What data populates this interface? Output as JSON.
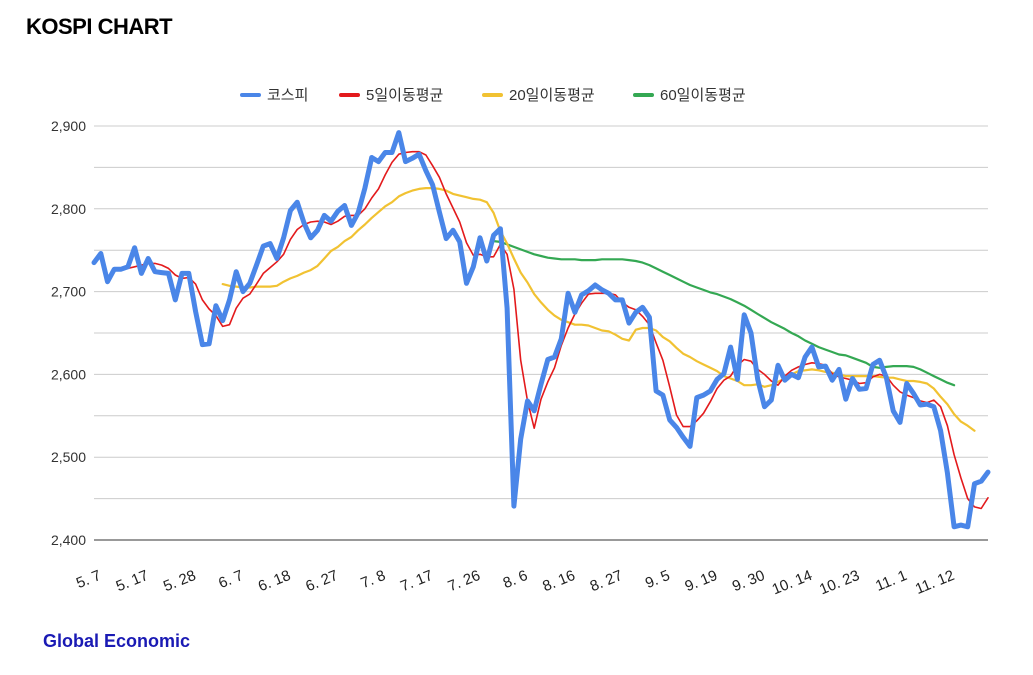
{
  "header": {
    "title": "KOSPI CHART"
  },
  "footer": {
    "source": "Global Economic"
  },
  "chart_data": {
    "type": "line",
    "title": "KOSPI CHART",
    "xlabel": "",
    "ylabel": "",
    "ylim": [
      2400,
      2900
    ],
    "yticks": [
      "2,400",
      "2,500",
      "2,600",
      "2,700",
      "2,800",
      "2,900"
    ],
    "ytick_values": [
      2400,
      2500,
      2600,
      2700,
      2800,
      2900
    ],
    "xtick_labels": [
      "5. 7",
      "5. 17",
      "5. 28",
      "6. 7",
      "6. 18",
      "6. 27",
      "7. 8",
      "7. 17",
      "7. 26",
      "8. 6",
      "8. 16",
      "8. 27",
      "9. 5",
      "9. 19",
      "9. 30",
      "10. 14",
      "10. 23",
      "11. 1",
      "11. 12"
    ],
    "xtick_index": [
      0,
      7,
      14,
      21,
      28,
      35,
      42,
      49,
      56,
      63,
      70,
      77,
      84,
      91,
      98,
      105,
      112,
      119,
      126
    ],
    "grid": true,
    "legend": "top",
    "series": [
      {
        "name": "코스피",
        "color": "#4a86e8",
        "values": [
          2735,
          2746,
          2712,
          2727,
          2727,
          2730,
          2753,
          2722,
          2740,
          2724,
          2723,
          2722,
          2690,
          2722,
          2722,
          2676,
          2636,
          2637,
          2683,
          2665,
          2690,
          2724,
          2700,
          2710,
          2732,
          2755,
          2758,
          2740,
          2765,
          2798,
          2808,
          2783,
          2765,
          2774,
          2792,
          2785,
          2797,
          2804,
          2780,
          2795,
          2825,
          2862,
          2857,
          2868,
          2868,
          2892,
          2857,
          2861,
          2866,
          2846,
          2829,
          2796,
          2764,
          2774,
          2760,
          2710,
          2730,
          2765,
          2737,
          2768,
          2776,
          2680,
          2441,
          2522,
          2568,
          2556,
          2588,
          2618,
          2621,
          2643,
          2698,
          2675,
          2696,
          2701,
          2708,
          2702,
          2698,
          2690,
          2690,
          2662,
          2675,
          2681,
          2669,
          2580,
          2575,
          2545,
          2536,
          2524,
          2513,
          2572,
          2575,
          2580,
          2594,
          2601,
          2633,
          2594,
          2672,
          2650,
          2594,
          2561,
          2569,
          2611,
          2593,
          2600,
          2596,
          2621,
          2633,
          2609,
          2610,
          2593,
          2606,
          2570,
          2595,
          2582,
          2583,
          2612,
          2617,
          2596,
          2556,
          2542,
          2589,
          2577,
          2563,
          2564,
          2561,
          2532,
          2481,
          2416,
          2418,
          2416,
          2468,
          2471,
          2482
        ]
      },
      {
        "name": "5일이동평균",
        "color": "#e31a1c",
        "values": [
          null,
          null,
          null,
          null,
          2727,
          2728,
          2730,
          2732,
          2734,
          2734,
          2732,
          2728,
          2720,
          2716,
          2717,
          2709,
          2690,
          2679,
          2671,
          2658,
          2660,
          2680,
          2692,
          2697,
          2709,
          2722,
          2729,
          2736,
          2745,
          2763,
          2775,
          2781,
          2784,
          2785,
          2784,
          2781,
          2785,
          2791,
          2792,
          2792,
          2800,
          2813,
          2824,
          2841,
          2856,
          2866,
          2868,
          2869,
          2869,
          2865,
          2852,
          2838,
          2818,
          2801,
          2784,
          2759,
          2744,
          2745,
          2742,
          2742,
          2757,
          2745,
          2703,
          2617,
          2568,
          2535,
          2570,
          2591,
          2608,
          2635,
          2656,
          2673,
          2686,
          2697,
          2698,
          2698,
          2698,
          2696,
          2687,
          2681,
          2678,
          2670,
          2660,
          2638,
          2617,
          2585,
          2551,
          2537,
          2537,
          2544,
          2553,
          2567,
          2583,
          2593,
          2598,
          2611,
          2618,
          2616,
          2606,
          2600,
          2592,
          2587,
          2598,
          2605,
          2609,
          2612,
          2614,
          2613,
          2611,
          2601,
          2597,
          2595,
          2593,
          2589,
          2590,
          2597,
          2600,
          2598,
          2587,
          2579,
          2575,
          2572,
          2568,
          2566,
          2569,
          2561,
          2538,
          2503,
          2475,
          2450,
          2440,
          2438,
          2451
        ]
      },
      {
        "name": "20일이동평균",
        "color": "#f1c232",
        "values": [
          null,
          null,
          null,
          null,
          null,
          null,
          null,
          null,
          null,
          null,
          null,
          null,
          null,
          null,
          null,
          null,
          null,
          null,
          null,
          2709,
          2707,
          2706,
          2705,
          2705,
          2706,
          2706,
          2706,
          2707,
          2712,
          2716,
          2719,
          2723,
          2726,
          2731,
          2740,
          2749,
          2754,
          2761,
          2766,
          2774,
          2781,
          2789,
          2796,
          2803,
          2808,
          2815,
          2819,
          2822,
          2824,
          2825,
          2825,
          2824,
          2822,
          2818,
          2816,
          2814,
          2812,
          2811,
          2808,
          2795,
          2773,
          2758,
          2740,
          2723,
          2711,
          2697,
          2687,
          2678,
          2671,
          2666,
          2663,
          2660,
          2660,
          2659,
          2656,
          2653,
          2652,
          2648,
          2643,
          2641,
          2654,
          2656,
          2656,
          2653,
          2645,
          2640,
          2632,
          2625,
          2621,
          2616,
          2612,
          2608,
          2604,
          2598,
          2595,
          2592,
          2587,
          2587,
          2588,
          2585,
          2587,
          2591,
          2595,
          2600,
          2604,
          2605,
          2606,
          2605,
          2603,
          2602,
          2600,
          2598,
          2598,
          2598,
          2598,
          2598,
          2597,
          2596,
          2596,
          2594,
          2592,
          2592,
          2591,
          2589,
          2583,
          2573,
          2564,
          2552,
          2543,
          2538,
          2532
        ]
      },
      {
        "name": "60일이동평균",
        "color": "#34a853",
        "values": [
          null,
          null,
          null,
          null,
          null,
          null,
          null,
          null,
          null,
          null,
          null,
          null,
          null,
          null,
          null,
          null,
          null,
          null,
          null,
          null,
          null,
          null,
          null,
          null,
          null,
          null,
          null,
          null,
          null,
          null,
          null,
          null,
          null,
          null,
          null,
          null,
          null,
          null,
          null,
          null,
          null,
          null,
          null,
          null,
          null,
          null,
          null,
          null,
          null,
          null,
          null,
          null,
          null,
          null,
          null,
          null,
          null,
          null,
          null,
          2761,
          2760,
          2757,
          2754,
          2751,
          2748,
          2745,
          2743,
          2741,
          2740,
          2739,
          2739,
          2739,
          2738,
          2738,
          2738,
          2739,
          2739,
          2739,
          2739,
          2738,
          2737,
          2735,
          2732,
          2728,
          2724,
          2720,
          2716,
          2712,
          2708,
          2705,
          2702,
          2699,
          2697,
          2694,
          2691,
          2687,
          2683,
          2678,
          2673,
          2668,
          2663,
          2659,
          2655,
          2650,
          2646,
          2641,
          2637,
          2633,
          2630,
          2627,
          2624,
          2623,
          2620,
          2617,
          2614,
          2609,
          2608,
          2609,
          2610,
          2610,
          2610,
          2609,
          2606,
          2602,
          2598,
          2594,
          2590,
          2587
        ]
      }
    ]
  }
}
